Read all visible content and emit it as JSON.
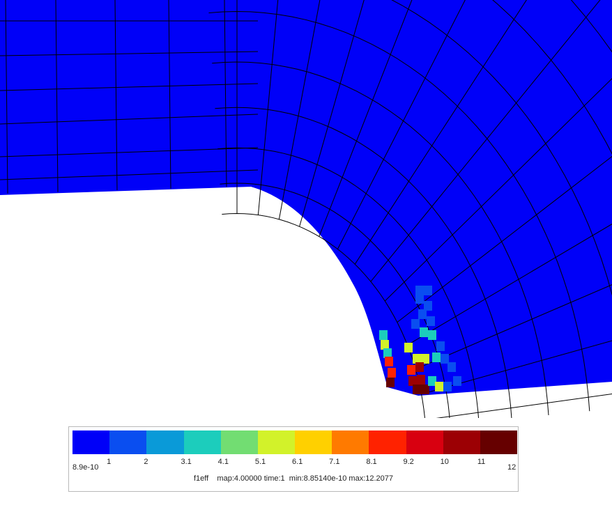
{
  "colors": {
    "background": "#ffffff",
    "mesh_fill": "#0000f8",
    "mesh_lines": "#000000",
    "legend_border": "#b8b8b8"
  },
  "legend": {
    "colors": [
      "#0000f8",
      "#0a4ef0",
      "#0a9ad8",
      "#1ccdbc",
      "#72dd72",
      "#d2f22a",
      "#ffd000",
      "#ff7a00",
      "#ff2200",
      "#d80010",
      "#9c0004",
      "#660000"
    ],
    "ticks": [
      "8.9e-10",
      "1",
      "2",
      "3.1",
      "4.1",
      "5.1",
      "6.1",
      "7.1",
      "8.1",
      "9.2",
      "10",
      "11",
      "12"
    ],
    "caption": {
      "variable": "f1eff",
      "map": "map:4.00000",
      "time": "time:1",
      "min": "min:8.85140e-10",
      "max": "max:12.2077"
    }
  },
  "hotspot_cells": [
    {
      "level": 1,
      "count": 14
    },
    {
      "level": 3,
      "count": 6
    },
    {
      "level": 5,
      "count": 5
    },
    {
      "level": 8,
      "count": 4
    },
    {
      "level": 10,
      "count": 3
    },
    {
      "level": 11,
      "count": 3
    }
  ]
}
